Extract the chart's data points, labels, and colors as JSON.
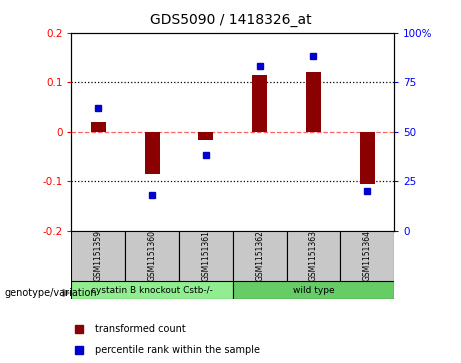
{
  "title": "GDS5090 / 1418326_at",
  "samples": [
    "GSM1151359",
    "GSM1151360",
    "GSM1151361",
    "GSM1151362",
    "GSM1151363",
    "GSM1151364"
  ],
  "bar_values": [
    0.02,
    -0.085,
    -0.018,
    0.115,
    0.12,
    -0.105
  ],
  "percentile_values": [
    62,
    18,
    38,
    83,
    88,
    20
  ],
  "bar_color": "#8B0000",
  "dot_color": "#0000CD",
  "groups": [
    {
      "label": "cystatin B knockout Cstb-/-",
      "samples": [
        0,
        1,
        2
      ],
      "color": "#90EE90"
    },
    {
      "label": "wild type",
      "samples": [
        3,
        4,
        5
      ],
      "color": "#66CC66"
    }
  ],
  "ylim_left": [
    -0.2,
    0.2
  ],
  "ylim_right": [
    0,
    100
  ],
  "yticks_left": [
    -0.2,
    -0.1,
    0.0,
    0.1,
    0.2
  ],
  "yticks_right": [
    0,
    25,
    50,
    75,
    100
  ],
  "ytick_labels_right": [
    "0",
    "25",
    "50",
    "75",
    "100%"
  ],
  "zero_line_color": "#FF6666",
  "dotted_line_color": "#000000",
  "sample_box_color": "#C8C8C8",
  "legend_label_bar": "transformed count",
  "legend_label_dot": "percentile rank within the sample",
  "genotype_label": "genotype/variation"
}
